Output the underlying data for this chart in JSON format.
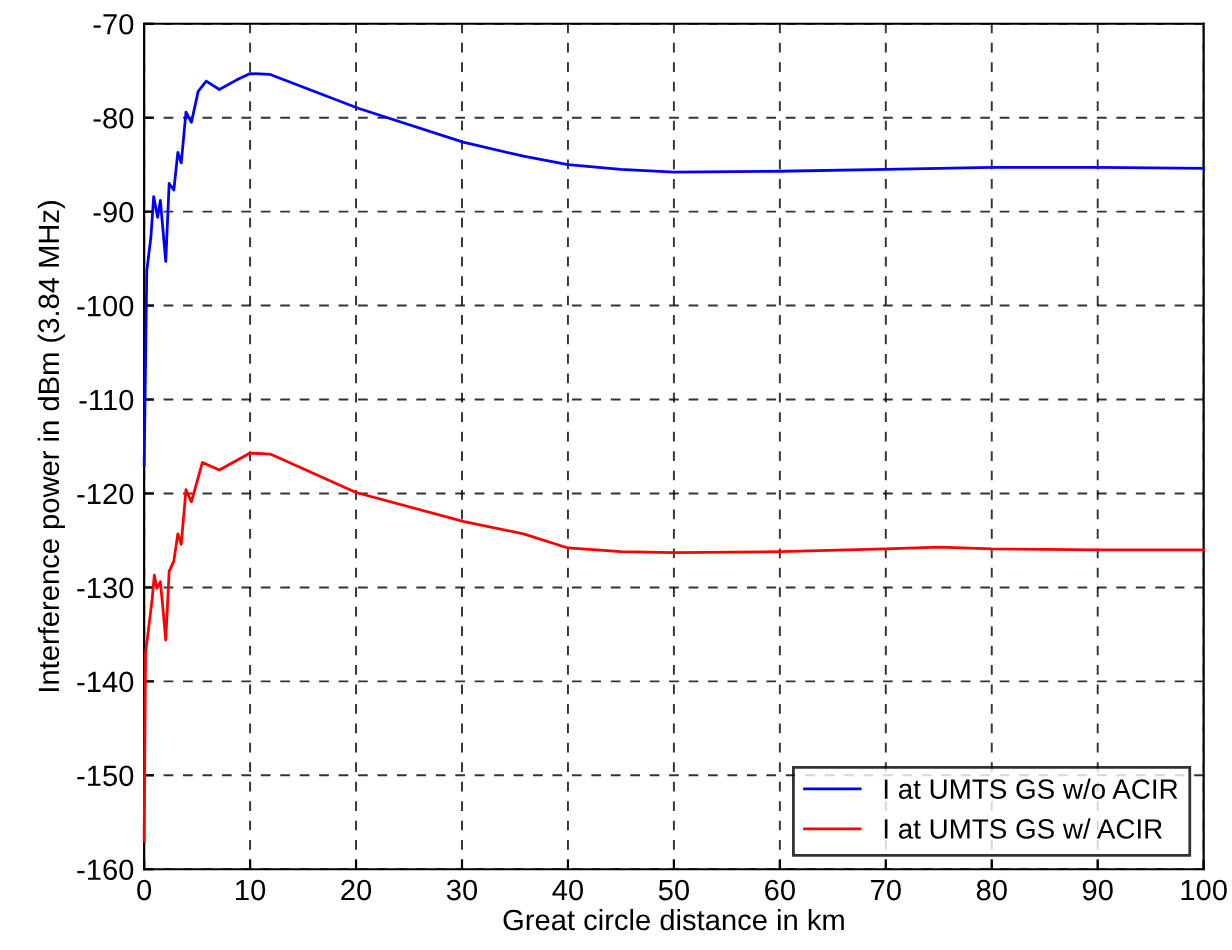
{
  "chart_data": {
    "type": "line",
    "xlabel": "Great circle distance in km",
    "ylabel": "Interference power in dBm (3.84 MHz)",
    "xlim": [
      0,
      100
    ],
    "ylim": [
      -160,
      -70
    ],
    "xticks": [
      0,
      10,
      20,
      30,
      40,
      50,
      60,
      70,
      80,
      90,
      100
    ],
    "yticks": [
      -160,
      -150,
      -140,
      -130,
      -120,
      -110,
      -100,
      -90,
      -80,
      -70
    ],
    "grid": true,
    "legend": "bottom right",
    "line_style": "solid",
    "series": [
      {
        "name": "I at UMTS GS w/o ACIR",
        "color": "#0000ff",
        "x": [
          0,
          0.25,
          0.64,
          0.9,
          1.27,
          1.53,
          1.78,
          2.04,
          2.36,
          2.8,
          3.18,
          3.5,
          3.95,
          4.46,
          5.1,
          5.86,
          7.1,
          8.7,
          10,
          11.9,
          20.2,
          30.1,
          35.8,
          40,
          45,
          50,
          60,
          70,
          80,
          90,
          100
        ],
        "values": [
          -117,
          -96.3,
          -92.7,
          -88.4,
          -90.6,
          -88.8,
          -92,
          -95.3,
          -87,
          -87.7,
          -83.7,
          -84.8,
          -79.4,
          -80.5,
          -77.2,
          -76.1,
          -77,
          -76,
          -75.3,
          -75.4,
          -79,
          -82.6,
          -84.1,
          -85,
          -85.5,
          -85.8,
          -85.7,
          -85.5,
          -85.3,
          -85.3,
          -85.4
        ]
      },
      {
        "name": "I at UMTS GS w/ ACIR",
        "color": "#ff0000",
        "x": [
          0,
          0.13,
          0.45,
          0.76,
          0.96,
          1.2,
          1.53,
          1.78,
          2.04,
          2.36,
          2.8,
          3.18,
          3.5,
          3.95,
          4.46,
          5.5,
          7.1,
          10,
          11.9,
          20,
          30.2,
          35.8,
          40,
          45,
          50,
          60,
          70,
          75,
          80,
          90,
          100
        ],
        "values": [
          -157,
          -137,
          -134.1,
          -131.2,
          -128.7,
          -130.1,
          -129.4,
          -132.3,
          -135.6,
          -128.3,
          -127.2,
          -124.3,
          -125.4,
          -119.6,
          -120.9,
          -116.7,
          -117.5,
          -115.7,
          -115.8,
          -119.9,
          -123,
          -124.3,
          -125.8,
          -126.2,
          -126.3,
          -126.2,
          -125.9,
          -125.7,
          -125.9,
          -126,
          -126
        ]
      }
    ]
  }
}
